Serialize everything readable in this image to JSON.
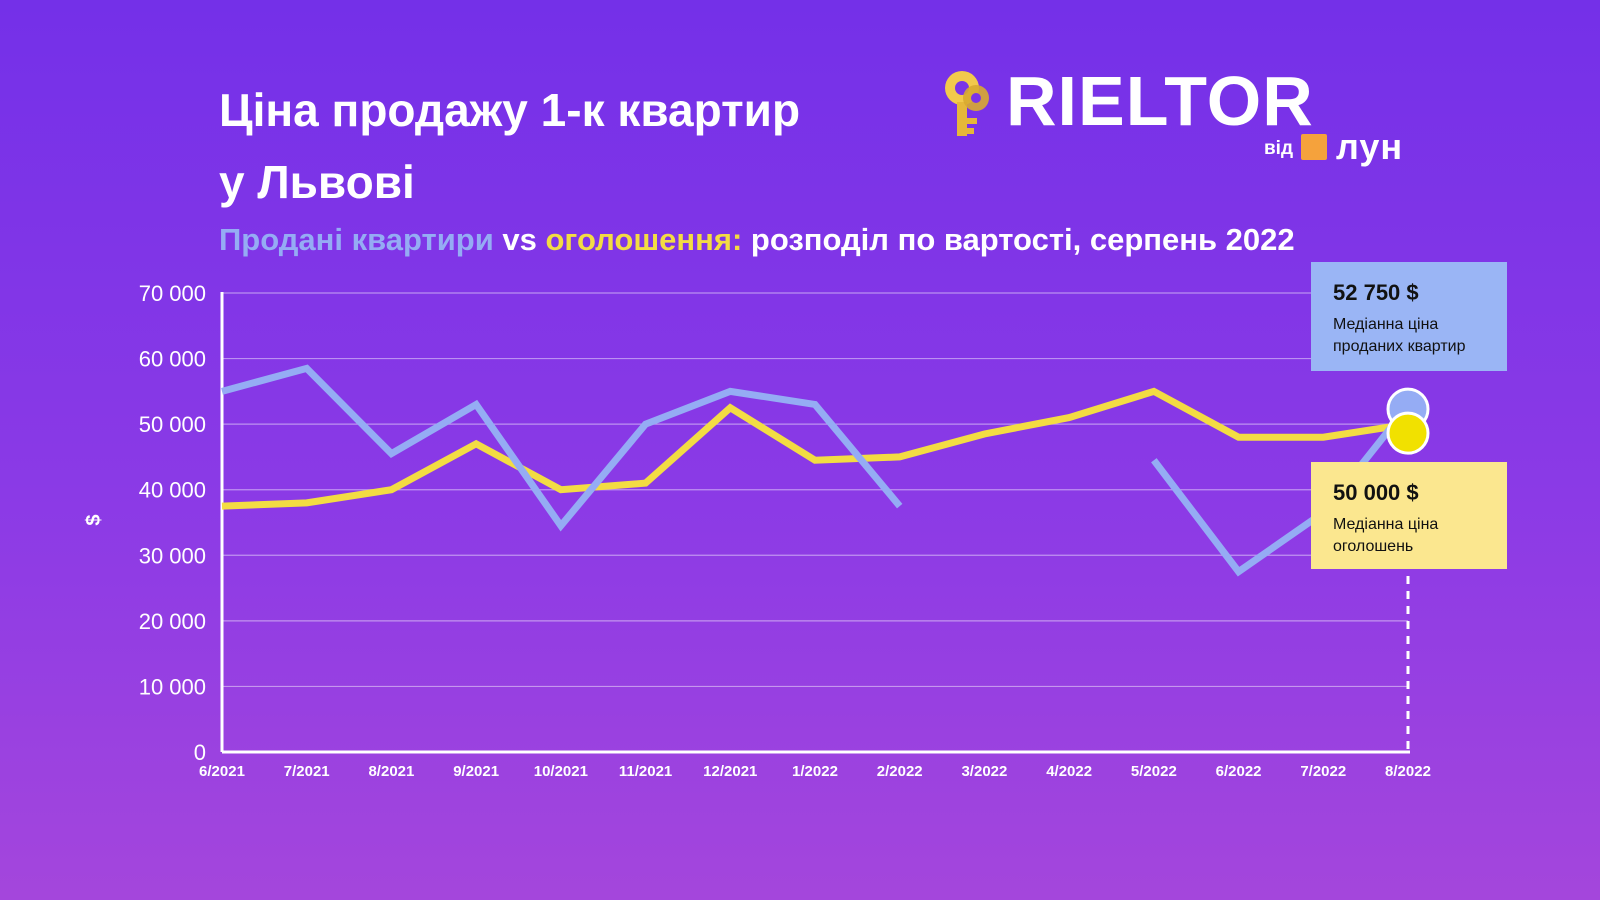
{
  "title": {
    "line1": "Ціна продажу 1-к квартир",
    "line2": "у Львові"
  },
  "subtitle": {
    "sold": "Продані квартири",
    "vs": " vs ",
    "listings": "оголошення:",
    "rest": " розподіл по вартості, серпень 2022"
  },
  "logo": {
    "word": "RIELTOR",
    "from": "від",
    "brand": "лун",
    "icon": "key-icon"
  },
  "colors": {
    "sold": "#95acf4",
    "listings": "#f3dc43",
    "listings_dot": "#f1e100"
  },
  "callouts": {
    "sold": {
      "value": "52 750 $",
      "label_line1": "Медіанна ціна",
      "label_line2": "проданих квартир"
    },
    "listings": {
      "value": "50 000 $",
      "label_line1": "Медіанна ціна",
      "label_line2": "оголошень"
    }
  },
  "chart_data": {
    "type": "line",
    "ylabel": "$",
    "ylim": [
      0,
      70000
    ],
    "yticks": [
      0,
      10000,
      20000,
      30000,
      40000,
      50000,
      60000,
      70000
    ],
    "ytick_labels": [
      "0",
      "10 000",
      "20 000",
      "30 000",
      "40 000",
      "50 000",
      "60 000",
      "70 000"
    ],
    "grid": true,
    "categories": [
      "6/2021",
      "7/2021",
      "8/2021",
      "9/2021",
      "10/2021",
      "11/2021",
      "12/2021",
      "1/2022",
      "2/2022",
      "3/2022",
      "4/2022",
      "5/2022",
      "6/2022",
      "7/2022",
      "8/2022"
    ],
    "series": [
      {
        "name": "Продані квартири",
        "values": [
          55000,
          58500,
          45500,
          53000,
          34500,
          50000,
          55000,
          53000,
          37500,
          null,
          null,
          44500,
          27500,
          36500,
          52750
        ]
      },
      {
        "name": "оголошення",
        "values": [
          37500,
          38000,
          40000,
          47000,
          40000,
          41000,
          52500,
          44500,
          45000,
          48500,
          51000,
          55000,
          48000,
          48000,
          50000
        ]
      }
    ]
  }
}
